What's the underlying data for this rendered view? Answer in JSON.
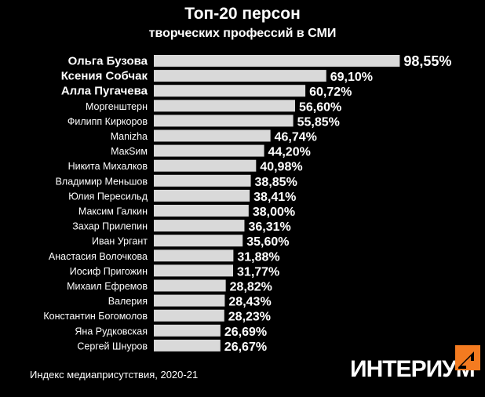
{
  "title": "Топ-20 персон",
  "subtitle": "творческих профессий в СМИ",
  "footnote": "Индекс медиаприсутствия, 2020-21",
  "logo_text": "ИНТЕРИУМ",
  "colors": {
    "background": "#000000",
    "bar": "#d9d9d9",
    "text": "#ffffff",
    "logo_accent": "#f47b20"
  },
  "chart_data": {
    "type": "bar",
    "orientation": "horizontal",
    "title": "Топ-20 персон",
    "subtitle": "творческих профессий в СМИ",
    "categories": [
      "Ольга Бузова",
      "Ксения Собчак",
      "Алла Пугачева",
      "Моргенштерн",
      "Филипп Киркоров",
      "Manizha",
      "МакSим",
      "Никита Михалков",
      "Владимир Меньшов",
      "Юлия Пересильд",
      "Максим Галкин",
      "Захар Прилепин",
      "Иван Ургант",
      "Анастасия Волочкова",
      "Иосиф Пригожин",
      "Михаил Ефремов",
      "Валерия",
      "Константин Богомолов",
      "Яна Рудковская",
      "Сергей Шнуров"
    ],
    "values": [
      98.55,
      69.1,
      60.72,
      56.6,
      55.85,
      46.74,
      44.2,
      40.98,
      38.85,
      38.41,
      38.0,
      36.31,
      35.6,
      31.88,
      31.77,
      28.82,
      28.43,
      28.23,
      26.69,
      26.67
    ],
    "value_labels": [
      "98,55%",
      "69,10%",
      "60,72%",
      "56,60%",
      "55,85%",
      "46,74%",
      "44,20%",
      "40,98%",
      "38,85%",
      "38,41%",
      "38,00%",
      "36,31%",
      "35,60%",
      "31,88%",
      "31,77%",
      "28,82%",
      "28,43%",
      "28,23%",
      "26,69%",
      "26,67%"
    ],
    "emphasized_categories": [
      "Ольга Бузова",
      "Ксения Собчак",
      "Алла Пугачева"
    ],
    "xlim": [
      0,
      100
    ],
    "grid": false,
    "legend": "none"
  }
}
